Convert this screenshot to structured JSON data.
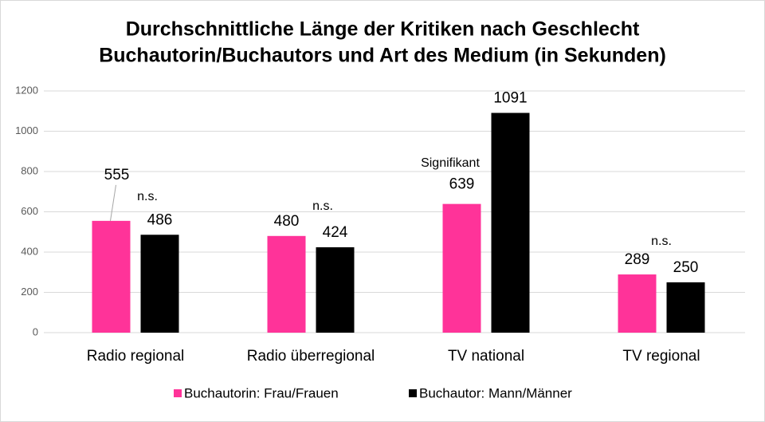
{
  "chart_data": {
    "type": "bar",
    "title": [
      "Durchschnittliche Länge der Kritiken nach Geschlecht",
      "Buchautorin/Buchautors und Art des Medium (in Sekunden)"
    ],
    "categories": [
      "Radio regional",
      "Radio überregional",
      "TV national",
      "TV regional"
    ],
    "series": [
      {
        "name": "Buchautorin: Frau/Frauen",
        "color": "#ff3399",
        "values": [
          555,
          480,
          639,
          289
        ]
      },
      {
        "name": "Buchautor: Mann/Männer",
        "color": "#000000",
        "values": [
          486,
          424,
          1091,
          250
        ]
      }
    ],
    "annotations": [
      "n.s.",
      "n.s.",
      "Signifikant",
      "n.s."
    ],
    "ylim": [
      0,
      1200
    ],
    "yticks": [
      0,
      200,
      400,
      600,
      800,
      1000,
      1200
    ],
    "grid": true,
    "legend": "bottom"
  }
}
